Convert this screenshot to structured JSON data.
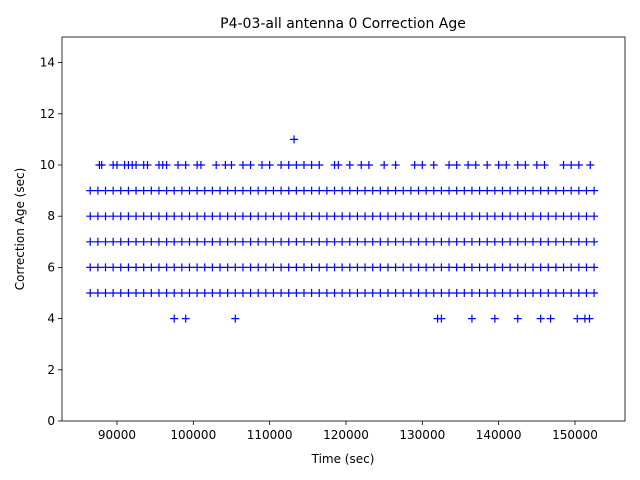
{
  "chart_data": {
    "type": "scatter",
    "title": "P4-03-all antenna 0 Correction Age",
    "x_label": "Time (sec)",
    "y_label": "Correction Age (sec)",
    "color": "#0000ff",
    "marker": "+",
    "xlim": [
      82800,
      156550
    ],
    "xticks": [
      90000,
      100000,
      110000,
      120000,
      130000,
      140000,
      150000
    ],
    "ylim": [
      0,
      15
    ],
    "yticks": [
      0,
      2,
      4,
      6,
      8,
      10,
      12,
      14
    ],
    "x": [
      86500,
      87500,
      88500,
      89500,
      90500,
      91500,
      92500,
      93500,
      94500,
      95500,
      96500,
      97500,
      98500,
      99500,
      100500,
      101500,
      102500,
      103500,
      104500,
      105500,
      106500,
      107500,
      108500,
      109500,
      110500,
      111500,
      112500,
      113500,
      114500,
      115500,
      116500,
      117500,
      118500,
      119500,
      120500,
      121500,
      122500,
      123500,
      124500,
      125500,
      126500,
      127500,
      128500,
      129500,
      130500,
      131500,
      132500,
      133500,
      134500,
      135500,
      136500,
      137500,
      138500,
      139500,
      140500,
      141500,
      142500,
      143500,
      144500,
      145500,
      146500,
      147500,
      148500,
      149500,
      150500,
      151500,
      152500,
      86500,
      87500,
      88500,
      89500,
      90500,
      91500,
      92500,
      93500,
      94500,
      95500,
      96500,
      97500,
      98500,
      99500,
      100500,
      101500,
      102500,
      103500,
      104500,
      105500,
      106500,
      107500,
      108500,
      109500,
      110500,
      111500,
      112500,
      113500,
      114500,
      115500,
      116500,
      117500,
      118500,
      119500,
      120500,
      121500,
      122500,
      123500,
      124500,
      125500,
      126500,
      127500,
      128500,
      129500,
      130500,
      131500,
      132500,
      133500,
      134500,
      135500,
      136500,
      137500,
      138500,
      139500,
      140500,
      141500,
      142500,
      143500,
      144500,
      145500,
      146500,
      147500,
      148500,
      149500,
      150500,
      151500,
      152500,
      86500,
      87500,
      88500,
      89500,
      90500,
      91500,
      92500,
      93500,
      94500,
      95500,
      96500,
      97500,
      98500,
      99500,
      100500,
      101500,
      102500,
      103500,
      104500,
      105500,
      106500,
      107500,
      108500,
      109500,
      110500,
      111500,
      112500,
      113500,
      114500,
      115500,
      116500,
      117500,
      118500,
      119500,
      120500,
      121500,
      122500,
      123500,
      124500,
      125500,
      126500,
      127500,
      128500,
      129500,
      130500,
      131500,
      132500,
      133500,
      134500,
      135500,
      136500,
      137500,
      138500,
      139500,
      140500,
      141500,
      142500,
      143500,
      144500,
      145500,
      146500,
      147500,
      148500,
      149500,
      150500,
      151500,
      152500,
      86500,
      87500,
      88500,
      89500,
      90500,
      91500,
      92500,
      93500,
      94500,
      95500,
      96500,
      97500,
      98500,
      99500,
      100500,
      101500,
      102500,
      103500,
      104500,
      105500,
      106500,
      107500,
      108500,
      109500,
      110500,
      111500,
      112500,
      113500,
      114500,
      115500,
      116500,
      117500,
      118500,
      119500,
      120500,
      121500,
      122500,
      123500,
      124500,
      125500,
      126500,
      127500,
      128500,
      129500,
      130500,
      131500,
      132500,
      133500,
      134500,
      135500,
      136500,
      137500,
      138500,
      139500,
      140500,
      141500,
      142500,
      143500,
      144500,
      145500,
      146500,
      147500,
      148500,
      149500,
      150500,
      151500,
      152500,
      86500,
      87500,
      88500,
      89500,
      90500,
      91500,
      92500,
      93500,
      94500,
      95500,
      96500,
      97500,
      98500,
      99500,
      100500,
      101500,
      102500,
      103500,
      104500,
      105500,
      106500,
      107500,
      108500,
      109500,
      110500,
      111500,
      112500,
      113500,
      114500,
      115500,
      116500,
      117500,
      118500,
      119500,
      120500,
      121500,
      122500,
      123500,
      124500,
      125500,
      126500,
      127500,
      128500,
      129500,
      130500,
      131500,
      132500,
      133500,
      134500,
      135500,
      136500,
      137500,
      138500,
      139500,
      140500,
      141500,
      142500,
      143500,
      144500,
      145500,
      146500,
      147500,
      148500,
      149500,
      150500,
      151500,
      152500,
      87700,
      88000,
      89500,
      90000,
      91000,
      91500,
      92000,
      92500,
      93500,
      94000,
      95500,
      96000,
      96500,
      98000,
      99000,
      100500,
      101000,
      103000,
      104200,
      105000,
      106500,
      107500,
      109000,
      110000,
      111500,
      112500,
      113500,
      114500,
      115500,
      116500,
      118500,
      119000,
      120500,
      122000,
      123000,
      125000,
      126500,
      129000,
      130000,
      131500,
      133500,
      134500,
      136000,
      137000,
      138500,
      140000,
      141000,
      142500,
      143500,
      145000,
      146000,
      148500,
      149500,
      150500,
      152000,
      113200,
      97500,
      99000,
      105500,
      132000,
      132500,
      136500,
      139500,
      142500,
      145500,
      146800,
      150300,
      151300,
      151900
    ],
    "values": [
      5,
      5,
      5,
      5,
      5,
      5,
      5,
      5,
      5,
      5,
      5,
      5,
      5,
      5,
      5,
      5,
      5,
      5,
      5,
      5,
      5,
      5,
      5,
      5,
      5,
      5,
      5,
      5,
      5,
      5,
      5,
      5,
      5,
      5,
      5,
      5,
      5,
      5,
      5,
      5,
      5,
      5,
      5,
      5,
      5,
      5,
      5,
      5,
      5,
      5,
      5,
      5,
      5,
      5,
      5,
      5,
      5,
      5,
      5,
      5,
      5,
      5,
      5,
      5,
      5,
      5,
      5,
      6,
      6,
      6,
      6,
      6,
      6,
      6,
      6,
      6,
      6,
      6,
      6,
      6,
      6,
      6,
      6,
      6,
      6,
      6,
      6,
      6,
      6,
      6,
      6,
      6,
      6,
      6,
      6,
      6,
      6,
      6,
      6,
      6,
      6,
      6,
      6,
      6,
      6,
      6,
      6,
      6,
      6,
      6,
      6,
      6,
      6,
      6,
      6,
      6,
      6,
      6,
      6,
      6,
      6,
      6,
      6,
      6,
      6,
      6,
      6,
      6,
      6,
      6,
      6,
      6,
      6,
      6,
      7,
      7,
      7,
      7,
      7,
      7,
      7,
      7,
      7,
      7,
      7,
      7,
      7,
      7,
      7,
      7,
      7,
      7,
      7,
      7,
      7,
      7,
      7,
      7,
      7,
      7,
      7,
      7,
      7,
      7,
      7,
      7,
      7,
      7,
      7,
      7,
      7,
      7,
      7,
      7,
      7,
      7,
      7,
      7,
      7,
      7,
      7,
      7,
      7,
      7,
      7,
      7,
      7,
      7,
      7,
      7,
      7,
      7,
      7,
      7,
      7,
      7,
      7,
      7,
      7,
      7,
      7,
      8,
      8,
      8,
      8,
      8,
      8,
      8,
      8,
      8,
      8,
      8,
      8,
      8,
      8,
      8,
      8,
      8,
      8,
      8,
      8,
      8,
      8,
      8,
      8,
      8,
      8,
      8,
      8,
      8,
      8,
      8,
      8,
      8,
      8,
      8,
      8,
      8,
      8,
      8,
      8,
      8,
      8,
      8,
      8,
      8,
      8,
      8,
      8,
      8,
      8,
      8,
      8,
      8,
      8,
      8,
      8,
      8,
      8,
      8,
      8,
      8,
      8,
      8,
      8,
      8,
      8,
      8,
      9,
      9,
      9,
      9,
      9,
      9,
      9,
      9,
      9,
      9,
      9,
      9,
      9,
      9,
      9,
      9,
      9,
      9,
      9,
      9,
      9,
      9,
      9,
      9,
      9,
      9,
      9,
      9,
      9,
      9,
      9,
      9,
      9,
      9,
      9,
      9,
      9,
      9,
      9,
      9,
      9,
      9,
      9,
      9,
      9,
      9,
      9,
      9,
      9,
      9,
      9,
      9,
      9,
      9,
      9,
      9,
      9,
      9,
      9,
      9,
      9,
      9,
      9,
      9,
      9,
      9,
      9,
      10,
      10,
      10,
      10,
      10,
      10,
      10,
      10,
      10,
      10,
      10,
      10,
      10,
      10,
      10,
      10,
      10,
      10,
      10,
      10,
      10,
      10,
      10,
      10,
      10,
      10,
      10,
      10,
      10,
      10,
      10,
      10,
      10,
      10,
      10,
      10,
      10,
      10,
      10,
      10,
      10,
      10,
      10,
      10,
      10,
      10,
      10,
      10,
      10,
      10,
      10,
      10,
      10,
      10,
      10,
      11,
      4,
      4,
      4,
      4,
      4,
      4,
      4,
      4,
      4,
      4,
      4,
      4,
      4
    ]
  }
}
